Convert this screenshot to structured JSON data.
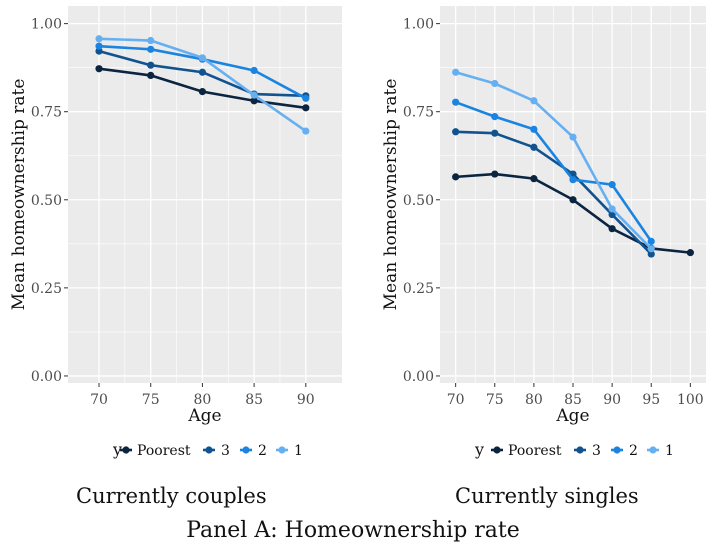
{
  "figure": {
    "panel_caption": "Panel A: Homeownership rate",
    "palette": {
      "Poorest": "#0b2440",
      "3": "#11538f",
      "2": "#1a84e0",
      "1": "#66b0f2",
      "panel_bg": "#ebebeb",
      "grid": "#ffffff"
    }
  },
  "chart_data": [
    {
      "type": "line",
      "caption": "Currently couples",
      "xlabel": "Age",
      "ylabel": "Mean homeownership rate",
      "xlim": [
        67,
        93.5
      ],
      "ylim": [
        -0.02,
        1.05
      ],
      "x_ticks": [
        70,
        75,
        80,
        85,
        90
      ],
      "x_tick_labels": [
        "70",
        "75",
        "80",
        "85",
        "90"
      ],
      "y_ticks": [
        0,
        0.25,
        0.5,
        0.75,
        1.0
      ],
      "y_tick_labels": [
        "0.00",
        "0.25",
        "0.50",
        "0.75",
        "1.00"
      ],
      "grid": true,
      "legend": {
        "title": "y",
        "position": "bottom",
        "entries": [
          "Poorest",
          "3",
          "2",
          "1"
        ]
      },
      "series": [
        {
          "name": "Poorest",
          "x": [
            70,
            75,
            80,
            85,
            90
          ],
          "values": [
            0.872,
            0.853,
            0.807,
            0.781,
            0.761
          ]
        },
        {
          "name": "3",
          "x": [
            70,
            75,
            80,
            85,
            90
          ],
          "values": [
            0.922,
            0.882,
            0.862,
            0.8,
            0.795
          ]
        },
        {
          "name": "2",
          "x": [
            70,
            75,
            80,
            85,
            90
          ],
          "values": [
            0.936,
            0.927,
            0.899,
            0.867,
            0.788
          ]
        },
        {
          "name": "1",
          "x": [
            70,
            75,
            80,
            85,
            90
          ],
          "values": [
            0.957,
            0.952,
            0.903,
            0.797,
            0.695
          ]
        }
      ]
    },
    {
      "type": "line",
      "caption": "Currently singles",
      "xlabel": "Age",
      "ylabel": "Mean homeownership rate",
      "xlim": [
        68,
        102
      ],
      "ylim": [
        -0.02,
        1.05
      ],
      "x_ticks": [
        70,
        75,
        80,
        85,
        90,
        95,
        100
      ],
      "x_tick_labels": [
        "70",
        "75",
        "80",
        "85",
        "90",
        "95",
        "100"
      ],
      "y_ticks": [
        0,
        0.25,
        0.5,
        0.75,
        1.0
      ],
      "y_tick_labels": [
        "0.00",
        "0.25",
        "0.50",
        "0.75",
        "1.00"
      ],
      "grid": true,
      "legend": {
        "title": "y",
        "position": "bottom",
        "entries": [
          "Poorest",
          "3",
          "2",
          "1"
        ]
      },
      "series": [
        {
          "name": "Poorest",
          "x": [
            70,
            75,
            80,
            85,
            90,
            95,
            100
          ],
          "values": [
            0.565,
            0.573,
            0.56,
            0.5,
            0.418,
            0.362,
            0.35
          ]
        },
        {
          "name": "3",
          "x": [
            70,
            75,
            80,
            85,
            90,
            95
          ],
          "values": [
            0.693,
            0.689,
            0.649,
            0.573,
            0.458,
            0.346
          ]
        },
        {
          "name": "2",
          "x": [
            70,
            75,
            80,
            85,
            90,
            95
          ],
          "values": [
            0.777,
            0.736,
            0.7,
            0.557,
            0.543,
            0.382
          ]
        },
        {
          "name": "1",
          "x": [
            70,
            75,
            80,
            85,
            90,
            95
          ],
          "values": [
            0.862,
            0.83,
            0.781,
            0.678,
            0.474,
            0.361
          ]
        }
      ]
    }
  ]
}
